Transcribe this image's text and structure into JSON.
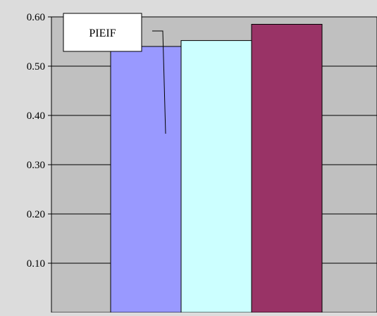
{
  "chart_data": {
    "type": "bar",
    "categories": [
      "",
      "",
      ""
    ],
    "values": [
      0.54,
      0.552,
      0.585
    ],
    "bar_colors": [
      "#9999ff",
      "#ccffff",
      "#993366"
    ],
    "title": "",
    "xlabel": "",
    "ylabel": "",
    "ylim": [
      0.0,
      0.6
    ],
    "yticks": [
      "0.10",
      "0.20",
      "0.30",
      "0.40",
      "0.50",
      "0.60"
    ],
    "grid": true,
    "plot_background": "#c0c0c0",
    "annotations": [
      {
        "text": "PIEIF",
        "target_bar": 0
      }
    ]
  }
}
